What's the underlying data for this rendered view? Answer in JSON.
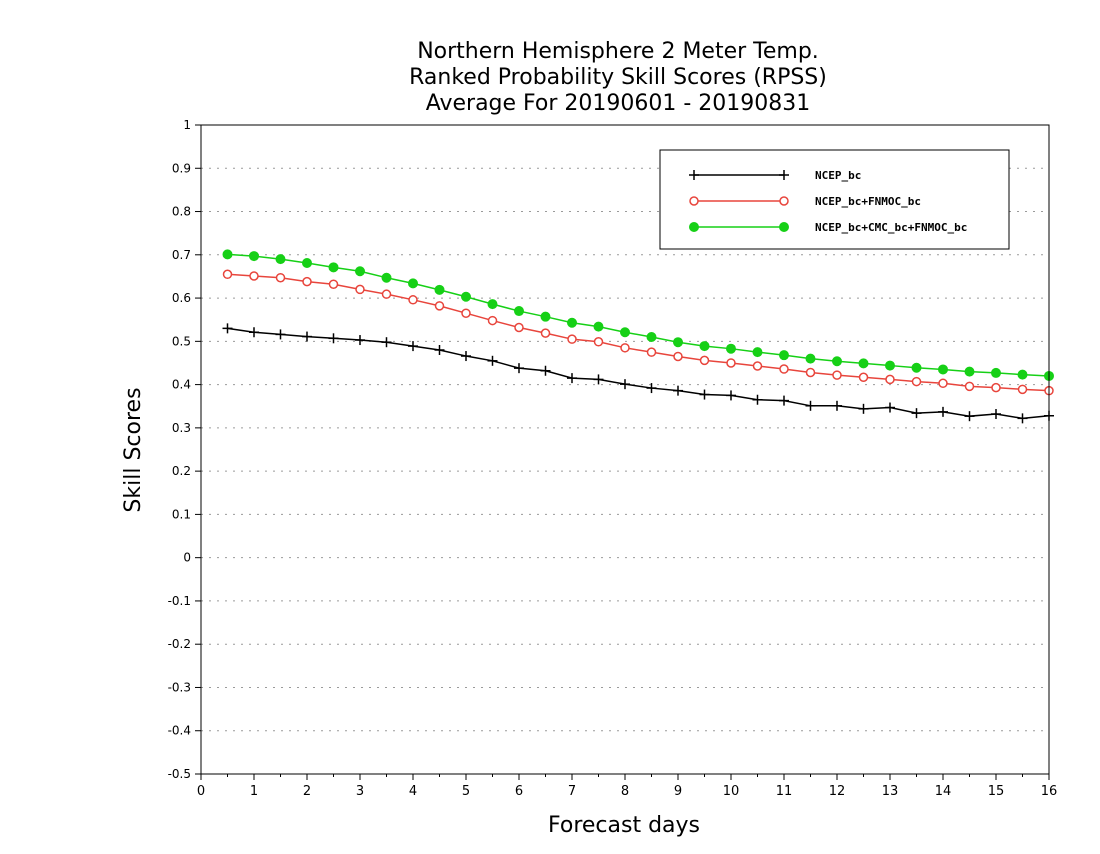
{
  "chart_data": {
    "type": "line",
    "title": [
      "Northern Hemisphere 2 Meter Temp.",
      "Ranked Probability Skill Scores (RPSS)",
      "Average For 20190601 - 20190831"
    ],
    "xlabel": "Forecast days",
    "ylabel": "Skill Scores",
    "xlim": [
      0,
      16
    ],
    "ylim": [
      -0.5,
      1
    ],
    "xticks": [
      "0",
      "1",
      "2",
      "3",
      "4",
      "5",
      "6",
      "7",
      "8",
      "9",
      "10",
      "11",
      "12",
      "13",
      "14",
      "15",
      "16"
    ],
    "yticks": [
      "-0.5",
      "-0.4",
      "-0.3",
      "-0.2",
      "-0.1",
      "0",
      "0.1",
      "0.2",
      "0.3",
      "0.4",
      "0.5",
      "0.6",
      "0.7",
      "0.8",
      "0.9",
      "1"
    ],
    "grid": true,
    "legend_position": "top-right",
    "x": [
      0.5,
      1,
      1.5,
      2,
      2.5,
      3,
      3.5,
      4,
      4.5,
      5,
      5.5,
      6,
      6.5,
      7,
      7.5,
      8,
      8.5,
      9,
      9.5,
      10,
      10.5,
      11,
      11.5,
      12,
      12.5,
      13,
      13.5,
      14,
      14.5,
      15,
      15.5,
      16
    ],
    "series": [
      {
        "name": "NCEP_bc",
        "color": "#000000",
        "marker": "plus",
        "values": [
          0.53,
          0.521,
          0.516,
          0.511,
          0.507,
          0.503,
          0.498,
          0.489,
          0.48,
          0.466,
          0.455,
          0.438,
          0.432,
          0.415,
          0.412,
          0.401,
          0.392,
          0.386,
          0.377,
          0.375,
          0.365,
          0.363,
          0.351,
          0.351,
          0.344,
          0.347,
          0.334,
          0.337,
          0.327,
          0.332,
          0.322,
          0.328
        ]
      },
      {
        "name": "NCEP_bc+FNMOC_bc",
        "color": "#e8453c",
        "marker": "open-circle",
        "values": [
          0.655,
          0.651,
          0.647,
          0.638,
          0.632,
          0.62,
          0.609,
          0.596,
          0.582,
          0.565,
          0.548,
          0.532,
          0.519,
          0.505,
          0.499,
          0.485,
          0.475,
          0.465,
          0.456,
          0.45,
          0.443,
          0.436,
          0.428,
          0.422,
          0.417,
          0.412,
          0.407,
          0.403,
          0.396,
          0.393,
          0.389,
          0.386
        ]
      },
      {
        "name": "NCEP_bc+CMC_bc+FNMOC_bc",
        "color": "#16d016",
        "marker": "filled-circle",
        "values": [
          0.701,
          0.697,
          0.69,
          0.681,
          0.671,
          0.662,
          0.647,
          0.634,
          0.619,
          0.603,
          0.586,
          0.57,
          0.557,
          0.543,
          0.534,
          0.521,
          0.51,
          0.498,
          0.489,
          0.483,
          0.475,
          0.468,
          0.46,
          0.454,
          0.449,
          0.444,
          0.439,
          0.435,
          0.43,
          0.427,
          0.423,
          0.42
        ]
      }
    ]
  }
}
